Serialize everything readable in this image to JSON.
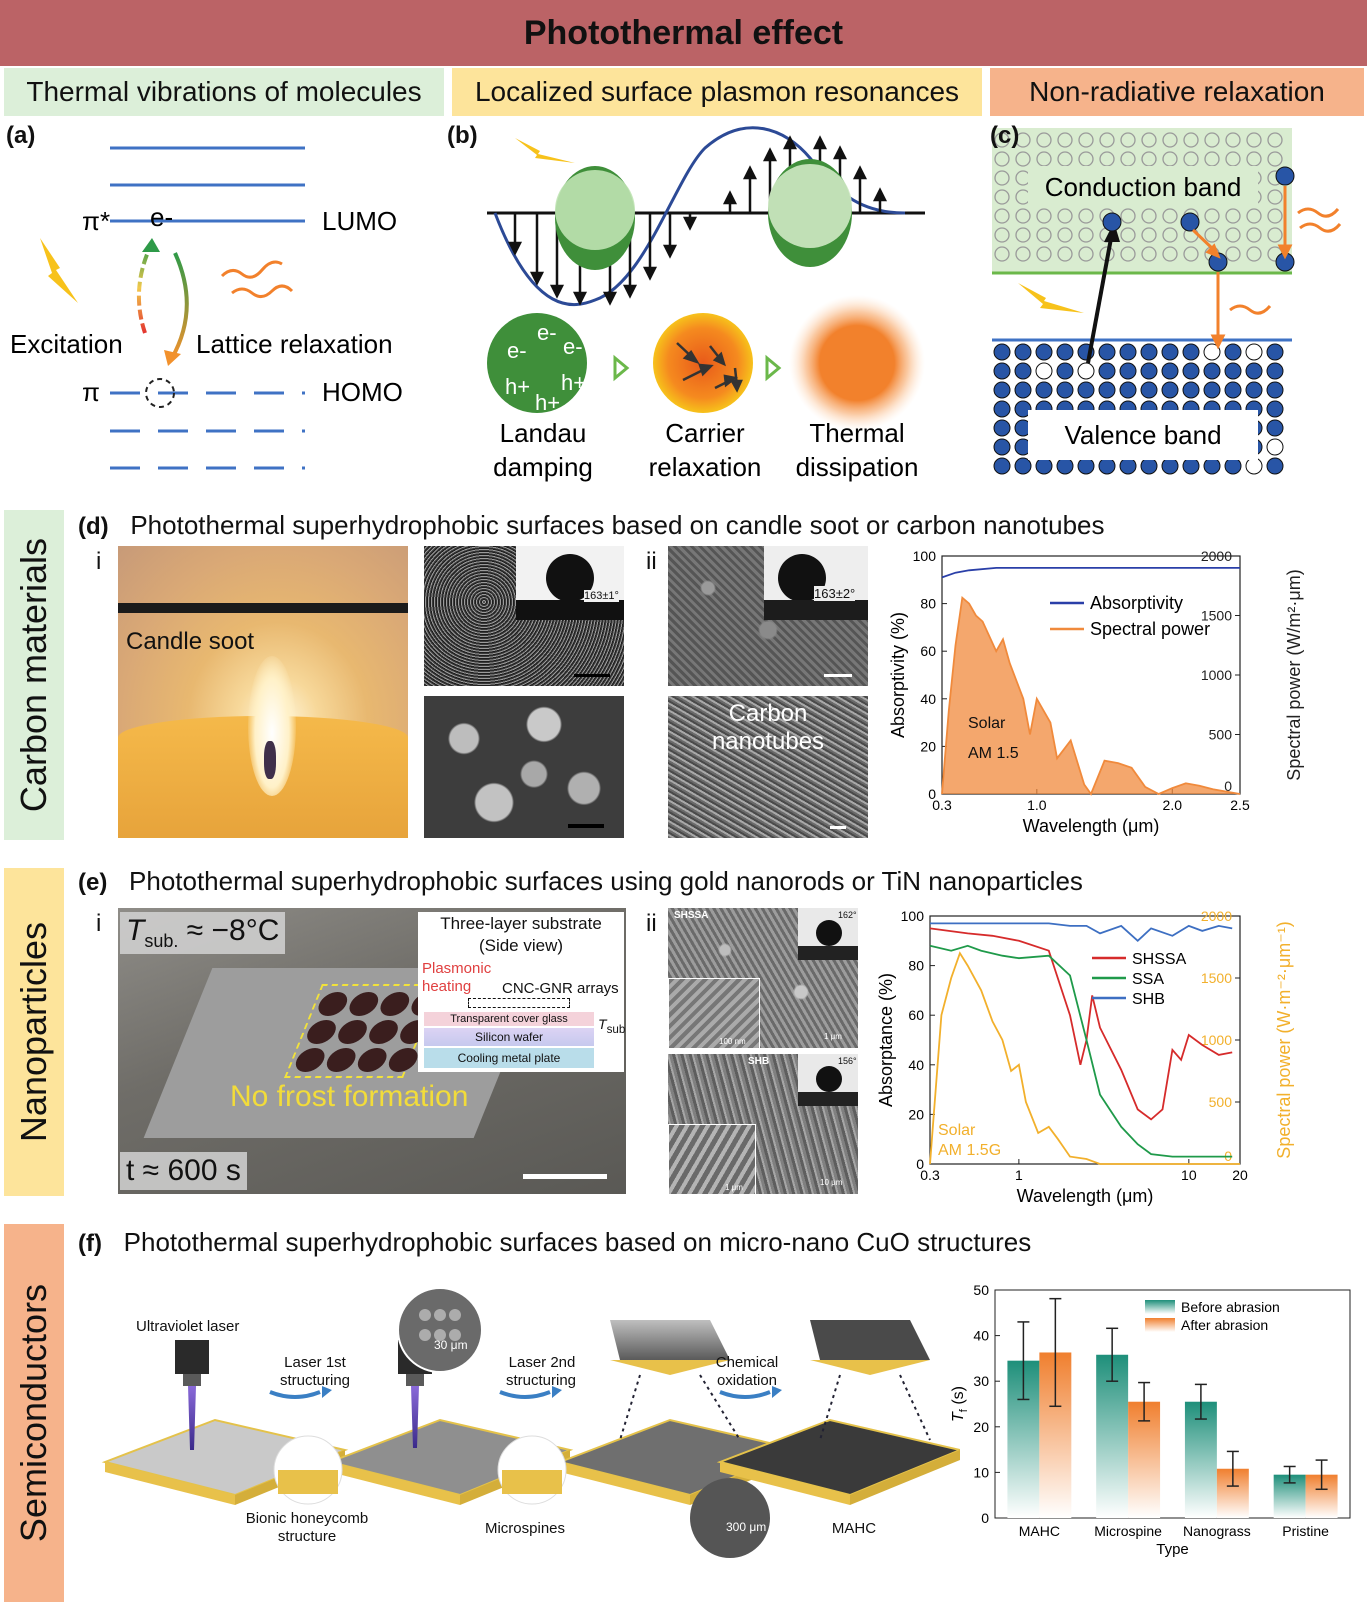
{
  "header": {
    "title": "Photothermal effect"
  },
  "mechanisms": {
    "a": {
      "label": "Thermal vibrations of molecules",
      "color": "#dcefd9"
    },
    "b": {
      "label": "Localized surface plasmon resonances",
      "color": "#fde49b"
    },
    "c": {
      "label": "Non-radiative relaxation",
      "color": "#f6b38b"
    }
  },
  "panel_a": {
    "tag": "(a)",
    "pi_star": "π*",
    "electron": "e-",
    "lumo": "LUMO",
    "pi": "π",
    "homo": "HOMO",
    "excitation": "Excitation",
    "lattice": "Lattice relaxation"
  },
  "panel_b": {
    "tag": "(b)",
    "e1": "e-",
    "e2": "e-",
    "e3": "e-",
    "h1": "h+",
    "h2": "h+",
    "h3": "h+",
    "landau1": "Landau",
    "landau2": "damping",
    "carrier1": "Carrier",
    "carrier2": "relaxation",
    "thermal1": "Thermal",
    "thermal2": "dissipation"
  },
  "panel_c": {
    "tag": "(c)",
    "conduction": "Conduction band",
    "valence": "Valence band"
  },
  "side": {
    "carbon": "Carbon materials",
    "nano": "Nanoparticles",
    "semi": "Semiconductors"
  },
  "panel_d": {
    "tag": "(d)",
    "title": "Photothermal superhydrophobic surfaces based on candle soot or carbon nanotubes",
    "i": "i",
    "ii": "ii",
    "candle": "Candle soot",
    "angle1": "163±1°",
    "angle2": "163±2°",
    "cnt1": "Carbon",
    "cnt2": "nanotubes",
    "solar1": "Solar",
    "solar2": "AM 1.5"
  },
  "panel_e": {
    "tag": "(e)",
    "title": "Photothermal superhydrophobic surfaces using gold nanorods or TiN nanoparticles",
    "i": "i",
    "ii": "ii",
    "tsub": "T",
    "tsub_sub": "sub.",
    "tsub_val": "≈ −8°C",
    "time": "t ≈ 600 s",
    "nofrost": "No frost formation",
    "three1": "Three-layer substrate",
    "three2": "(Side view)",
    "plasm1": "Plasmonic",
    "plasm2": "heating",
    "cnc": "CNC-GNR arrays",
    "layer1": "Transparent cover glass",
    "layer2": "Silicon wafer",
    "layer3": "Cooling metal plate",
    "tsub_small": "T",
    "tsub_small_sub": "sub",
    "shssa": "SHSSA",
    "shb": "SHB",
    "a162": "162°",
    "a156": "156°",
    "s100nm": "100 nm",
    "s1um": "1 μm",
    "s1um2": "1 μm",
    "s10um": "10 μm",
    "solar1": "Solar",
    "solar2": "AM 1.5G"
  },
  "panel_f": {
    "tag": "(f)",
    "title": "Photothermal superhydrophobic surfaces based on micro-nano CuO structures",
    "uv": "Ultraviolet laser",
    "l1a": "Laser 1st",
    "l1b": "structuring",
    "l2a": "Laser 2nd",
    "l2b": "structuring",
    "co1": "Chemical",
    "co2": "oxidation",
    "bionic1": "Bionic honeycomb",
    "bionic2": "structure",
    "micro": "Microspines",
    "mahc": "MAHC",
    "s30": "30 μm",
    "s300": "300 μm"
  },
  "chart_data": [
    {
      "type": "line",
      "id": "d-chart",
      "xlabel": "Wavelength (μm)",
      "ylabel": "Absorptivity (%)",
      "y2label": "Spectral power (W/m²·μm)",
      "xlim": [
        0.3,
        2.5
      ],
      "ylim": [
        0,
        100
      ],
      "y2lim": [
        0,
        2000
      ],
      "xticks": [
        "0.3",
        "1.0",
        "2.0",
        "2.5"
      ],
      "xtickvals": [
        0.3,
        1.0,
        2.0,
        2.5
      ],
      "yticks": [
        "0",
        "20",
        "40",
        "60",
        "80",
        "100"
      ],
      "y2ticks": [
        "0",
        "500",
        "1000",
        "1500",
        "2000"
      ],
      "legend_position": "top-right",
      "series": [
        {
          "name": "Absorptivity",
          "color": "#2a3fa8",
          "axis": "left",
          "x": [
            0.3,
            0.4,
            0.5,
            0.7,
            1.0,
            1.5,
            2.0,
            2.5
          ],
          "y": [
            91,
            93,
            94,
            95,
            95,
            95,
            95,
            95
          ]
        },
        {
          "name": "Spectral power",
          "color": "#f08a3c",
          "axis": "right",
          "fill": true,
          "x": [
            0.3,
            0.35,
            0.4,
            0.45,
            0.5,
            0.55,
            0.6,
            0.7,
            0.75,
            0.8,
            0.9,
            0.95,
            1.0,
            1.1,
            1.15,
            1.25,
            1.35,
            1.4,
            1.5,
            1.6,
            1.7,
            1.8,
            1.9,
            2.0,
            2.1,
            2.2,
            2.3,
            2.5
          ],
          "y": [
            0,
            700,
            1250,
            1650,
            1600,
            1500,
            1450,
            1200,
            1300,
            1100,
            800,
            500,
            800,
            600,
            300,
            450,
            80,
            0,
            280,
            260,
            220,
            60,
            0,
            50,
            90,
            70,
            40,
            0
          ]
        }
      ]
    },
    {
      "type": "line",
      "id": "e-chart",
      "xlabel": "Wavelength (μm)",
      "ylabel": "Absorptance (%)",
      "y2label": "Spectral power (W·m⁻²·μm⁻¹)",
      "xscale": "log",
      "xlim": [
        0.3,
        20
      ],
      "ylim": [
        0,
        100
      ],
      "y2lim": [
        0,
        2000
      ],
      "xticks": [
        "0.3",
        "1",
        "10",
        "20"
      ],
      "xtickvals": [
        0.3,
        1,
        10,
        20
      ],
      "yticks": [
        "0",
        "20",
        "40",
        "60",
        "80",
        "100"
      ],
      "y2ticks": [
        "0",
        "500",
        "1000",
        "1500",
        "2000"
      ],
      "legend_position": "top-right",
      "series": [
        {
          "name": "SHSSA",
          "color": "#d62b2b",
          "axis": "left",
          "x": [
            0.3,
            0.5,
            0.7,
            1.0,
            1.5,
            2.0,
            2.3,
            2.5,
            2.7,
            3.0,
            4.0,
            5.0,
            6.0,
            7.0,
            8.0,
            9.0,
            10,
            12,
            15,
            18
          ],
          "y": [
            95,
            93,
            92,
            90,
            86,
            60,
            40,
            50,
            68,
            55,
            38,
            22,
            18,
            22,
            46,
            42,
            52,
            48,
            44,
            45
          ]
        },
        {
          "name": "SSA",
          "color": "#1f9a4a",
          "axis": "left",
          "x": [
            0.3,
            0.4,
            0.5,
            0.6,
            0.8,
            1.0,
            1.5,
            2.0,
            2.5,
            3.0,
            4.0,
            5.0,
            6.0,
            8.0,
            10,
            15,
            18
          ],
          "y": [
            88,
            86,
            88,
            86,
            84,
            83,
            84,
            76,
            50,
            28,
            15,
            8,
            4,
            3,
            3,
            3,
            3
          ]
        },
        {
          "name": "SHB",
          "color": "#3d6fc2",
          "axis": "left",
          "x": [
            0.3,
            0.5,
            1.0,
            1.5,
            2.0,
            2.5,
            3.0,
            4.0,
            5.0,
            6.0,
            8.0,
            10,
            12,
            15,
            18
          ],
          "y": [
            97,
            97,
            97,
            97,
            96,
            96,
            93,
            96,
            90,
            95,
            92,
            96,
            94,
            96,
            95
          ]
        },
        {
          "name": "Spectral power",
          "color": "#f2b02c",
          "axis": "right",
          "x": [
            0.3,
            0.35,
            0.4,
            0.45,
            0.5,
            0.6,
            0.7,
            0.8,
            0.9,
            1.0,
            1.1,
            1.3,
            1.5,
            1.7,
            2.0,
            2.5,
            3,
            5,
            20
          ],
          "y": [
            0,
            1200,
            1500,
            1700,
            1600,
            1400,
            1150,
            1000,
            750,
            800,
            500,
            250,
            300,
            200,
            60,
            40,
            0,
            0,
            0
          ]
        }
      ]
    },
    {
      "type": "bar",
      "id": "f-chart",
      "categories": [
        "MAHC",
        "Microspine",
        "Nanograss",
        "Pristine"
      ],
      "xlabel": "Type",
      "ylabel": "T",
      "ylabel_sub": "f",
      "ylabel_unit": " (s)",
      "ylim": [
        0,
        50
      ],
      "yticks": [
        "0",
        "10",
        "20",
        "30",
        "40",
        "50"
      ],
      "legend_position": "top-right",
      "series": [
        {
          "name": "Before abrasion",
          "color": "#1e8f7a",
          "values": [
            34.5,
            35.8,
            25.5,
            9.5
          ],
          "errors": [
            8.5,
            5.8,
            3.8,
            1.8
          ]
        },
        {
          "name": "After abrasion",
          "color": "#f07f2e",
          "values": [
            36.3,
            25.5,
            10.8,
            9.5
          ],
          "errors": [
            11.8,
            4.2,
            3.8,
            3.2
          ]
        }
      ]
    }
  ]
}
